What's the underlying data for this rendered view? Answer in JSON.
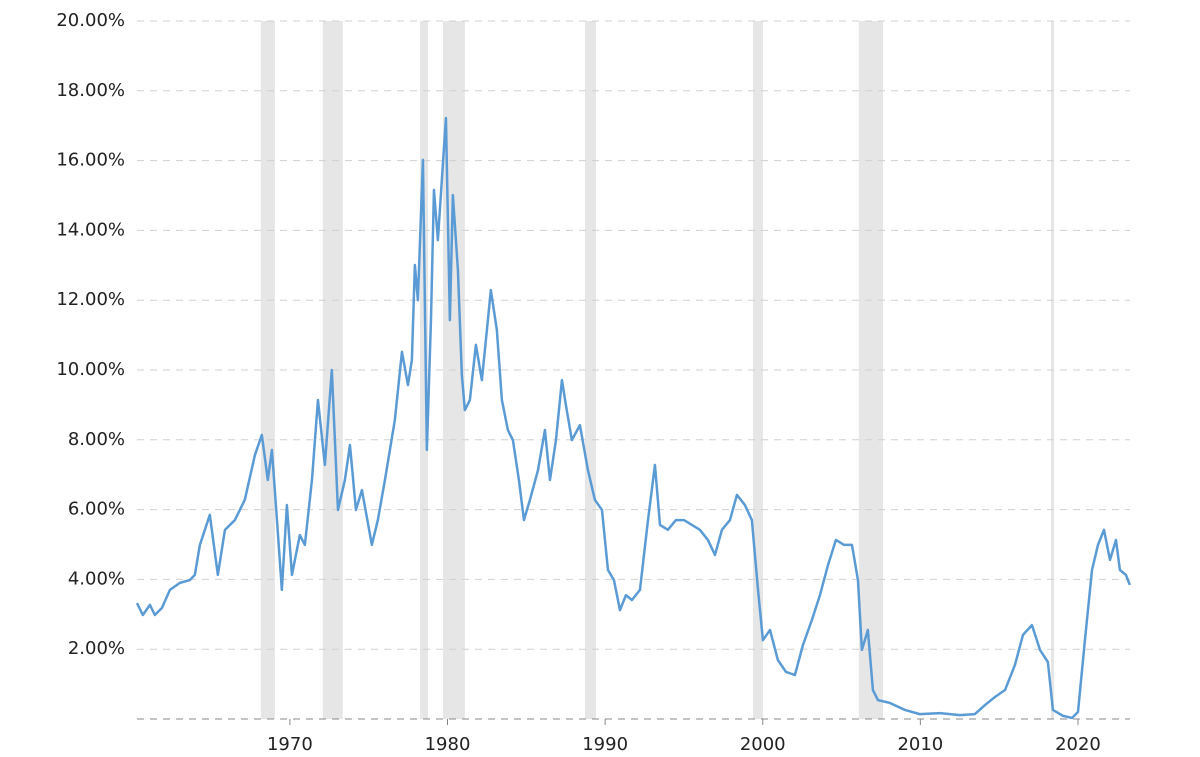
{
  "chart_data": {
    "type": "line",
    "x": [
      1960.3,
      1960.67,
      1961.12,
      1961.43,
      1961.88,
      1962.39,
      1963.02,
      1963.65,
      1963.97,
      1964.29,
      1964.92,
      1965.43,
      1965.88,
      1966.51,
      1967.14,
      1967.78,
      1968.22,
      1968.6,
      1968.86,
      1969.18,
      1969.49,
      1969.81,
      1970.13,
      1970.63,
      1970.95,
      1971.4,
      1971.78,
      1972.22,
      1972.66,
      1973.05,
      1973.49,
      1973.81,
      1974.19,
      1974.57,
      1975.2,
      1975.58,
      1976.03,
      1976.66,
      1977.11,
      1977.49,
      1977.74,
      1977.93,
      1978.12,
      1978.44,
      1978.69,
      1978.95,
      1979.14,
      1979.39,
      1979.64,
      1979.9,
      1980.15,
      1980.34,
      1980.66,
      1980.91,
      1981.1,
      1981.42,
      1981.8,
      1982.18,
      1982.5,
      1982.75,
      1983.13,
      1983.45,
      1983.83,
      1984.15,
      1984.53,
      1984.85,
      1985.23,
      1985.74,
      1986.18,
      1986.5,
      1986.88,
      1987.26,
      1987.51,
      1987.89,
      1988.4,
      1988.91,
      1989.35,
      1989.8,
      1990.18,
      1990.56,
      1990.94,
      1991.32,
      1991.7,
      1992.21,
      1992.72,
      1993.16,
      1993.48,
      1993.98,
      1994.49,
      1995.0,
      1995.51,
      1996.01,
      1996.52,
      1996.97,
      1997.41,
      1997.92,
      1998.36,
      1998.87,
      1999.31,
      1999.7,
      2000.01,
      2000.46,
      2000.96,
      2001.47,
      2002.04,
      2002.55,
      2003.12,
      2003.63,
      2004.14,
      2004.64,
      2005.15,
      2005.66,
      2006.04,
      2006.29,
      2006.67,
      2006.99,
      2007.31,
      2008.07,
      2009.02,
      2009.97,
      2011.24,
      2012.51,
      2013.46,
      2014.1,
      2014.73,
      2015.37,
      2016.0,
      2016.51,
      2017.08,
      2017.59,
      2018.09,
      2018.41,
      2019.05,
      2019.62,
      2020.0,
      2020.44,
      2020.89,
      2021.27,
      2021.65,
      2022.03,
      2022.41,
      2022.66,
      2023.04,
      2023.29
    ],
    "values": [
      3.32,
      2.98,
      3.27,
      2.98,
      3.18,
      3.7,
      3.9,
      3.98,
      4.13,
      4.99,
      5.85,
      4.13,
      5.42,
      5.7,
      6.28,
      7.56,
      8.14,
      6.85,
      7.71,
      5.7,
      3.7,
      6.13,
      4.13,
      5.27,
      4.99,
      6.85,
      9.14,
      7.28,
      10.0,
      5.99,
      6.85,
      7.85,
      5.99,
      6.56,
      4.99,
      5.7,
      6.85,
      8.57,
      10.52,
      9.57,
      10.29,
      13.01,
      12.0,
      16.02,
      7.71,
      11.43,
      15.16,
      13.72,
      15.44,
      17.22,
      11.43,
      15.01,
      12.87,
      9.86,
      8.85,
      9.14,
      10.72,
      9.71,
      11.15,
      12.29,
      11.15,
      9.14,
      8.28,
      7.99,
      6.85,
      5.7,
      6.28,
      7.13,
      8.28,
      6.85,
      7.99,
      9.71,
      9.0,
      7.99,
      8.42,
      7.13,
      6.28,
      5.99,
      4.27,
      3.98,
      3.12,
      3.55,
      3.41,
      3.7,
      5.7,
      7.28,
      5.56,
      5.42,
      5.7,
      5.7,
      5.56,
      5.42,
      5.13,
      4.7,
      5.42,
      5.7,
      6.42,
      6.13,
      5.7,
      3.7,
      2.26,
      2.55,
      1.69,
      1.35,
      1.26,
      2.12,
      2.84,
      3.55,
      4.41,
      5.13,
      4.99,
      4.99,
      3.98,
      1.98,
      2.55,
      0.83,
      0.54,
      0.46,
      0.26,
      0.14,
      0.17,
      0.11,
      0.14,
      0.4,
      0.63,
      0.83,
      1.55,
      2.41,
      2.69,
      1.98,
      1.63,
      0.26,
      0.09,
      0.03,
      0.2,
      2.26,
      4.27,
      4.99,
      5.42,
      4.56,
      5.13,
      4.27,
      4.13,
      3.84
    ],
    "color": "#5b9bd5",
    "shaded_ranges": [
      [
        1968.16,
        1969.05
      ],
      [
        1972.09,
        1973.36
      ],
      [
        1978.25,
        1978.76
      ],
      [
        1979.71,
        1981.1
      ],
      [
        1988.72,
        1989.42
      ],
      [
        1999.38,
        2000.01
      ],
      [
        2006.1,
        2007.63
      ],
      [
        2018.29,
        2018.48
      ]
    ],
    "shade_color": "#e6e6e6",
    "xlim": [
      1960.3,
      2023.3
    ],
    "xticks": [
      1970,
      1980,
      1990,
      2000,
      2010,
      2020
    ],
    "ylim": [
      0,
      20
    ],
    "yticks": [
      {
        "value": 2,
        "label": "2.00%"
      },
      {
        "value": 4,
        "label": "4.00%"
      },
      {
        "value": 6,
        "label": "6.00%"
      },
      {
        "value": 8,
        "label": "8.00%"
      },
      {
        "value": 10,
        "label": "10.00%"
      },
      {
        "value": 12,
        "label": "12.00%"
      },
      {
        "value": 14,
        "label": "14.00%"
      },
      {
        "value": 16,
        "label": "16.00%"
      },
      {
        "value": 18,
        "label": "18.00%"
      },
      {
        "value": 20,
        "label": "20.00%"
      }
    ],
    "grid": true
  }
}
